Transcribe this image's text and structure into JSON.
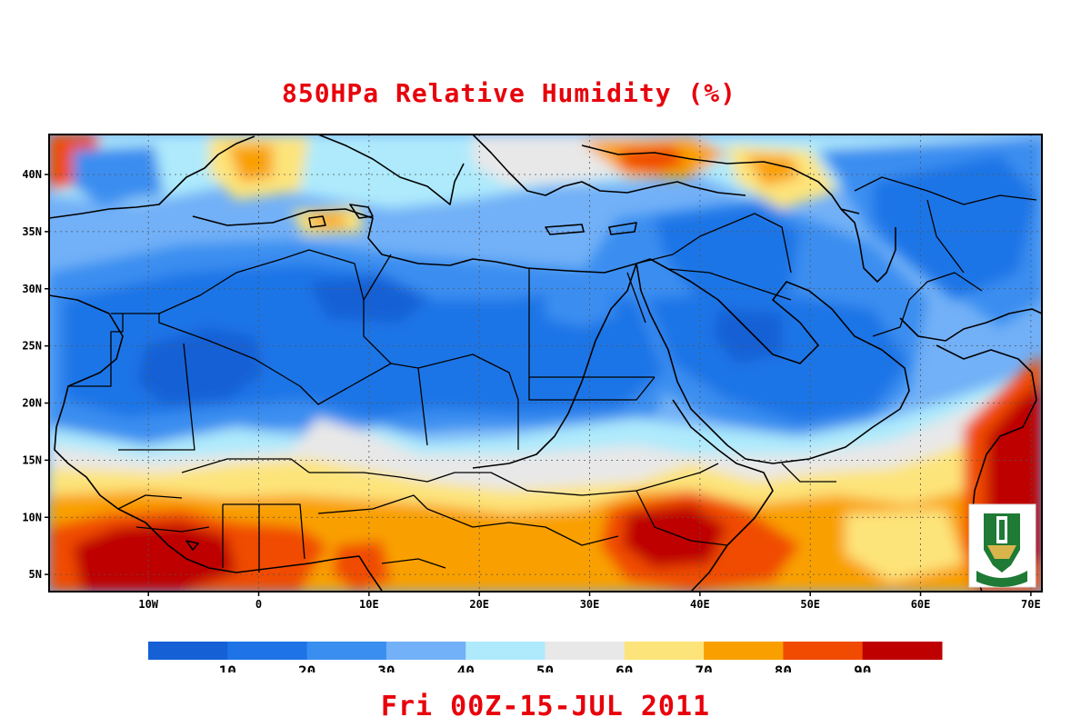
{
  "title": "850HPa Relative Humidity (%)",
  "footer": "Fri 00Z-15-JUL 2011",
  "map": {
    "lon_range": [
      -19,
      71
    ],
    "lat_range": [
      3.5,
      43.5
    ],
    "x_ticks": [
      {
        "lon": -10,
        "label": "10W"
      },
      {
        "lon": 0,
        "label": "0"
      },
      {
        "lon": 10,
        "label": "10E"
      },
      {
        "lon": 20,
        "label": "20E"
      },
      {
        "lon": 30,
        "label": "30E"
      },
      {
        "lon": 40,
        "label": "40E"
      },
      {
        "lon": 50,
        "label": "50E"
      },
      {
        "lon": 60,
        "label": "60E"
      },
      {
        "lon": 70,
        "label": "70E"
      }
    ],
    "y_ticks": [
      {
        "lat": 40,
        "label": "40N"
      },
      {
        "lat": 35,
        "label": "35N"
      },
      {
        "lat": 30,
        "label": "30N"
      },
      {
        "lat": 25,
        "label": "25N"
      },
      {
        "lat": 20,
        "label": "20N"
      },
      {
        "lat": 15,
        "label": "15N"
      },
      {
        "lat": 10,
        "label": "10N"
      },
      {
        "lat": 5,
        "label": "5N"
      }
    ],
    "grid": true
  },
  "colorbar": {
    "colors": [
      "#1560d5",
      "#1e74e6",
      "#3a8ef0",
      "#72b0f7",
      "#aeeafc",
      "#e8e8e8",
      "#fde47a",
      "#f9a000",
      "#f04b00",
      "#be0000"
    ],
    "labels": [
      "10",
      "20",
      "30",
      "40",
      "50",
      "60",
      "70",
      "80",
      "90"
    ]
  },
  "logo": {
    "name": "university-seal",
    "primary_color": "#1e7a35"
  }
}
